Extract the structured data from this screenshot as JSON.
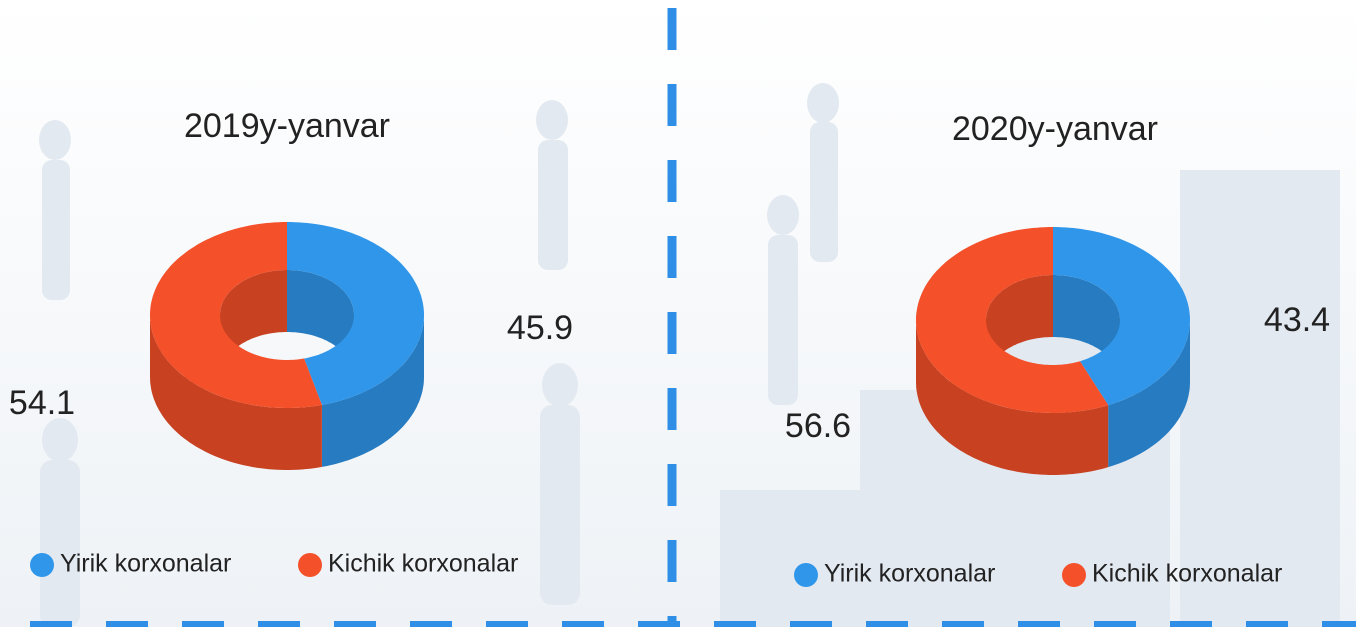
{
  "chart_data": [
    {
      "type": "donut",
      "title": "2019y-yanvar",
      "series": [
        {
          "name": "Yirik korxonalar",
          "color": "#3096ea",
          "values": [
            45.9
          ]
        },
        {
          "name": "Kichik korxonalar",
          "color": "#f4502a",
          "values": [
            54.1
          ]
        }
      ]
    },
    {
      "type": "donut",
      "title": "2020y-yanvar",
      "series": [
        {
          "name": "Yirik korxonalar",
          "color": "#3096ea",
          "values": [
            43.4
          ]
        },
        {
          "name": "Kichik korxonalar",
          "color": "#f4502a",
          "values": [
            56.6
          ]
        }
      ]
    }
  ]
}
